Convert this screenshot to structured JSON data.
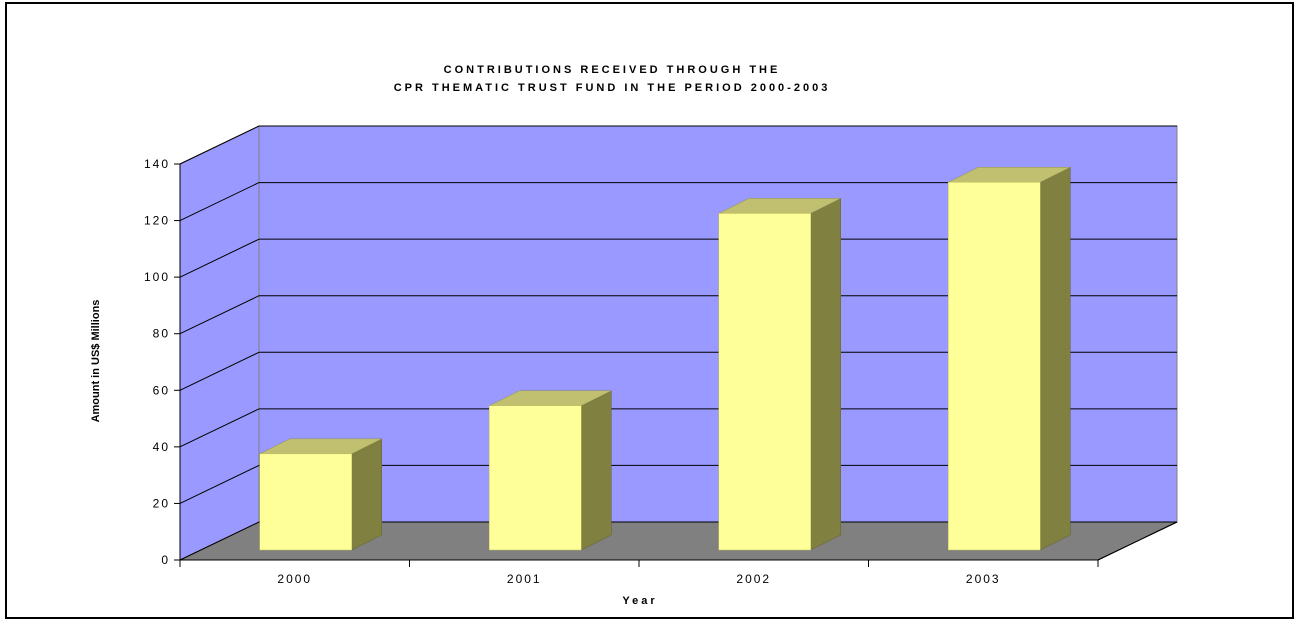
{
  "chart_data": {
    "type": "bar",
    "title": "CONTRIBUTIONS RECEIVED THROUGH THE",
    "subtitle": "CPR THEMATIC TRUST FUND IN THE PERIOD 2000-2003",
    "xlabel": "Year",
    "ylabel": "Amount in US$ Millions",
    "categories": [
      "2000",
      "2001",
      "2002",
      "2003"
    ],
    "values": [
      34,
      51,
      119,
      130
    ],
    "ylim": [
      0,
      140
    ],
    "yticks": [
      "0",
      "20",
      "40",
      "60",
      "80",
      "100",
      "120",
      "140"
    ],
    "grid": true,
    "legend": "none",
    "style": "3d",
    "colors": {
      "wall": "#9999ff",
      "floor": "#808080",
      "bar_front": "#ffff99",
      "bar_side": "#808040",
      "bar_top": "#c0c070"
    }
  }
}
